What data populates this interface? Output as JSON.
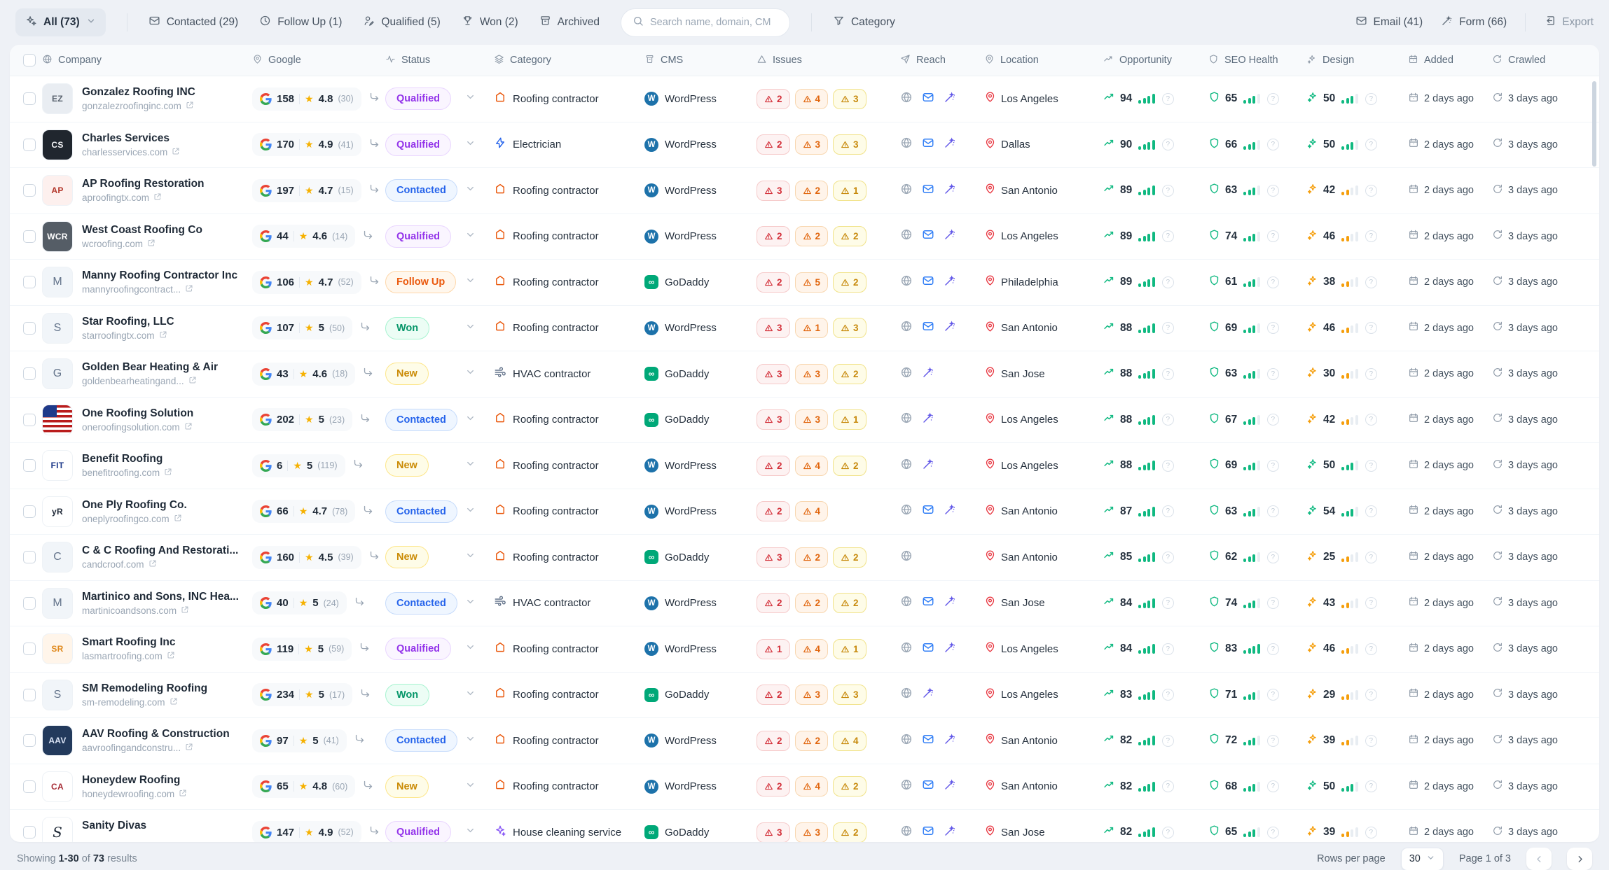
{
  "toolbar": {
    "all_label": "All (73)",
    "tabs": [
      {
        "icon": "mail-icon",
        "label": "Contacted (29)"
      },
      {
        "icon": "clock-icon",
        "label": "Follow Up (1)"
      },
      {
        "icon": "user-icon",
        "label": "Qualified (5)"
      },
      {
        "icon": "trophy-icon",
        "label": "Won (2)"
      },
      {
        "icon": "archive-icon",
        "label": "Archived"
      }
    ],
    "search_placeholder": "Search name, domain, CM",
    "category_label": "Category",
    "email_label": "Email (41)",
    "form_label": "Form (66)",
    "export_label": "Export"
  },
  "table": {
    "columns": [
      {
        "label": "Company"
      },
      {
        "label": "Google"
      },
      {
        "label": "Status"
      },
      {
        "label": "Category"
      },
      {
        "label": "CMS"
      },
      {
        "label": "Issues"
      },
      {
        "label": "Reach"
      },
      {
        "label": "Location"
      },
      {
        "label": "Opportunity"
      },
      {
        "label": "SEO Health"
      },
      {
        "label": "Design"
      },
      {
        "label": "Added"
      },
      {
        "label": "Crawled"
      }
    ],
    "rows": [
      {
        "name": "Gonzalez Roofing INC",
        "domain": "gonzalezroofinginc.com",
        "avatar": {
          "kind": "logo",
          "text": "EZ",
          "bg": "#e9edf2",
          "fg": "#5b6470"
        },
        "google": {
          "count": "158",
          "rating": "4.8",
          "reviews": "(30)"
        },
        "status": "Qualified",
        "category": {
          "label": "Roofing contractor",
          "type": "roofing"
        },
        "cms": "WordPress",
        "issues": [
          2,
          4,
          3
        ],
        "reach": {
          "globe": true,
          "mail": true,
          "wand": true
        },
        "location": "Los Angeles",
        "opportunity": 94,
        "seo": 65,
        "design": 50,
        "added": "2 days ago",
        "crawled": "3 days ago"
      },
      {
        "name": "Charles Services",
        "domain": "charlesservices.com",
        "avatar": {
          "kind": "logo",
          "text": "CS",
          "bg": "#20262e",
          "fg": "#f3f4f6"
        },
        "google": {
          "count": "170",
          "rating": "4.9",
          "reviews": "(41)"
        },
        "status": "Qualified",
        "category": {
          "label": "Electrician",
          "type": "electrician"
        },
        "cms": "WordPress",
        "issues": [
          2,
          3,
          3
        ],
        "reach": {
          "globe": true,
          "mail": true,
          "wand": true
        },
        "location": "Dallas",
        "opportunity": 90,
        "seo": 66,
        "design": 50,
        "added": "2 days ago",
        "crawled": "3 days ago"
      },
      {
        "name": "AP Roofing Restoration",
        "domain": "aproofingtx.com",
        "avatar": {
          "kind": "logo",
          "text": "AP",
          "bg": "#fdf0ee",
          "fg": "#b3362a"
        },
        "google": {
          "count": "197",
          "rating": "4.7",
          "reviews": "(15)"
        },
        "status": "Contacted",
        "category": {
          "label": "Roofing contractor",
          "type": "roofing"
        },
        "cms": "WordPress",
        "issues": [
          3,
          2,
          1
        ],
        "reach": {
          "globe": true,
          "mail": true,
          "wand": true
        },
        "location": "San Antonio",
        "opportunity": 89,
        "seo": 63,
        "design": 42,
        "added": "2 days ago",
        "crawled": "3 days ago"
      },
      {
        "name": "West Coast Roofing Co",
        "domain": "wcroofing.com",
        "avatar": {
          "kind": "logo",
          "text": "WCR",
          "bg": "#555d66",
          "fg": "#ffffff"
        },
        "google": {
          "count": "44",
          "rating": "4.6",
          "reviews": "(14)"
        },
        "status": "Qualified",
        "category": {
          "label": "Roofing contractor",
          "type": "roofing"
        },
        "cms": "WordPress",
        "issues": [
          2,
          2,
          2
        ],
        "reach": {
          "globe": true,
          "mail": true,
          "wand": true
        },
        "location": "Los Angeles",
        "opportunity": 89,
        "seo": 74,
        "design": 46,
        "added": "2 days ago",
        "crawled": "3 days ago"
      },
      {
        "name": "Manny Roofing Contractor Inc",
        "domain": "mannyroofingcontract...",
        "avatar": {
          "kind": "letter",
          "text": "M"
        },
        "google": {
          "count": "106",
          "rating": "4.7",
          "reviews": "(52)"
        },
        "status": "Follow Up",
        "category": {
          "label": "Roofing contractor",
          "type": "roofing"
        },
        "cms": "GoDaddy",
        "issues": [
          2,
          5,
          2
        ],
        "reach": {
          "globe": true,
          "mail": true,
          "wand": true
        },
        "location": "Philadelphia",
        "opportunity": 89,
        "seo": 61,
        "design": 38,
        "added": "2 days ago",
        "crawled": "3 days ago"
      },
      {
        "name": "Star Roofing, LLC",
        "domain": "starroofingtx.com",
        "avatar": {
          "kind": "letter",
          "text": "S"
        },
        "google": {
          "count": "107",
          "rating": "5",
          "reviews": "(50)"
        },
        "status": "Won",
        "category": {
          "label": "Roofing contractor",
          "type": "roofing"
        },
        "cms": "WordPress",
        "issues": [
          3,
          1,
          3
        ],
        "reach": {
          "globe": true,
          "mail": true,
          "wand": true
        },
        "location": "San Antonio",
        "opportunity": 88,
        "seo": 69,
        "design": 46,
        "added": "2 days ago",
        "crawled": "3 days ago"
      },
      {
        "name": "Golden Bear Heating & Air",
        "domain": "goldenbearheatingand...",
        "avatar": {
          "kind": "letter",
          "text": "G"
        },
        "google": {
          "count": "43",
          "rating": "4.6",
          "reviews": "(18)"
        },
        "status": "New",
        "category": {
          "label": "HVAC contractor",
          "type": "hvac"
        },
        "cms": "GoDaddy",
        "issues": [
          3,
          3,
          2
        ],
        "reach": {
          "globe": true,
          "mail": false,
          "wand": true
        },
        "location": "San Jose",
        "opportunity": 88,
        "seo": 63,
        "design": 30,
        "added": "2 days ago",
        "crawled": "3 days ago"
      },
      {
        "name": "One Roofing Solution",
        "domain": "oneroofingsolution.com",
        "avatar": {
          "kind": "flag",
          "text": ""
        },
        "google": {
          "count": "202",
          "rating": "5",
          "reviews": "(23)"
        },
        "status": "Contacted",
        "category": {
          "label": "Roofing contractor",
          "type": "roofing"
        },
        "cms": "GoDaddy",
        "issues": [
          3,
          3,
          1
        ],
        "reach": {
          "globe": true,
          "mail": false,
          "wand": true
        },
        "location": "Los Angeles",
        "opportunity": 88,
        "seo": 67,
        "design": 42,
        "added": "2 days ago",
        "crawled": "3 days ago"
      },
      {
        "name": "Benefit Roofing",
        "domain": "benefitroofing.com",
        "avatar": {
          "kind": "logo",
          "text": "FIT",
          "bg": "#ffffff",
          "fg": "#1e3a8a"
        },
        "google": {
          "count": "6",
          "rating": "5",
          "reviews": "(119)"
        },
        "status": "New",
        "category": {
          "label": "Roofing contractor",
          "type": "roofing"
        },
        "cms": "WordPress",
        "issues": [
          2,
          4,
          2
        ],
        "reach": {
          "globe": true,
          "mail": false,
          "wand": true
        },
        "location": "Los Angeles",
        "opportunity": 88,
        "seo": 69,
        "design": 50,
        "added": "2 days ago",
        "crawled": "3 days ago"
      },
      {
        "name": "One Ply Roofing Co.",
        "domain": "oneplyroofingco.com",
        "avatar": {
          "kind": "logo",
          "text": "yR",
          "bg": "#ffffff",
          "fg": "#1f2937"
        },
        "google": {
          "count": "66",
          "rating": "4.7",
          "reviews": "(78)"
        },
        "status": "Contacted",
        "category": {
          "label": "Roofing contractor",
          "type": "roofing"
        },
        "cms": "WordPress",
        "issues": [
          2,
          4,
          null
        ],
        "reach": {
          "globe": true,
          "mail": true,
          "wand": true
        },
        "location": "San Antonio",
        "opportunity": 87,
        "seo": 63,
        "design": 54,
        "added": "2 days ago",
        "crawled": "3 days ago"
      },
      {
        "name": "C & C Roofing And Restorati...",
        "domain": "candcroof.com",
        "avatar": {
          "kind": "letter",
          "text": "C"
        },
        "google": {
          "count": "160",
          "rating": "4.5",
          "reviews": "(39)"
        },
        "status": "New",
        "category": {
          "label": "Roofing contractor",
          "type": "roofing"
        },
        "cms": "GoDaddy",
        "issues": [
          3,
          2,
          2
        ],
        "reach": {
          "globe": true,
          "mail": false,
          "wand": false
        },
        "location": "San Antonio",
        "opportunity": 85,
        "seo": 62,
        "design": 25,
        "added": "2 days ago",
        "crawled": "3 days ago"
      },
      {
        "name": "Martinico and Sons, INC Hea...",
        "domain": "martinicoandsons.com",
        "avatar": {
          "kind": "letter",
          "text": "M"
        },
        "google": {
          "count": "40",
          "rating": "5",
          "reviews": "(24)"
        },
        "status": "Contacted",
        "category": {
          "label": "HVAC contractor",
          "type": "hvac"
        },
        "cms": "WordPress",
        "issues": [
          2,
          2,
          2
        ],
        "reach": {
          "globe": true,
          "mail": true,
          "wand": true
        },
        "location": "San Jose",
        "opportunity": 84,
        "seo": 74,
        "design": 43,
        "added": "2 days ago",
        "crawled": "3 days ago"
      },
      {
        "name": "Smart Roofing Inc",
        "domain": "lasmartroofing.com",
        "avatar": {
          "kind": "logo",
          "text": "SR",
          "bg": "#fff5ea",
          "fg": "#e08a1e"
        },
        "google": {
          "count": "119",
          "rating": "5",
          "reviews": "(59)"
        },
        "status": "Qualified",
        "category": {
          "label": "Roofing contractor",
          "type": "roofing"
        },
        "cms": "WordPress",
        "issues": [
          1,
          4,
          1
        ],
        "reach": {
          "globe": true,
          "mail": true,
          "wand": true
        },
        "location": "Los Angeles",
        "opportunity": 84,
        "seo": 83,
        "design": 46,
        "added": "2 days ago",
        "crawled": "3 days ago"
      },
      {
        "name": "SM Remodeling Roofing",
        "domain": "sm-remodeling.com",
        "avatar": {
          "kind": "letter",
          "text": "S"
        },
        "google": {
          "count": "234",
          "rating": "5",
          "reviews": "(17)"
        },
        "status": "Won",
        "category": {
          "label": "Roofing contractor",
          "type": "roofing"
        },
        "cms": "GoDaddy",
        "issues": [
          2,
          3,
          3
        ],
        "reach": {
          "globe": true,
          "mail": false,
          "wand": true
        },
        "location": "Los Angeles",
        "opportunity": 83,
        "seo": 71,
        "design": 29,
        "added": "2 days ago",
        "crawled": "3 days ago"
      },
      {
        "name": "AAV Roofing & Construction",
        "domain": "aavroofingandconstru...",
        "avatar": {
          "kind": "logo",
          "text": "AAV",
          "bg": "#233a5c",
          "fg": "#dbe4f5"
        },
        "google": {
          "count": "97",
          "rating": "5",
          "reviews": "(41)"
        },
        "status": "Contacted",
        "category": {
          "label": "Roofing contractor",
          "type": "roofing"
        },
        "cms": "WordPress",
        "issues": [
          2,
          2,
          4
        ],
        "reach": {
          "globe": true,
          "mail": true,
          "wand": true
        },
        "location": "San Antonio",
        "opportunity": 82,
        "seo": 72,
        "design": 39,
        "added": "2 days ago",
        "crawled": "3 days ago"
      },
      {
        "name": "Honeydew Roofing",
        "domain": "honeydewroofing.com",
        "avatar": {
          "kind": "logo",
          "text": "CA",
          "bg": "#ffffff",
          "fg": "#a72c35"
        },
        "google": {
          "count": "65",
          "rating": "4.8",
          "reviews": "(60)"
        },
        "status": "New",
        "category": {
          "label": "Roofing contractor",
          "type": "roofing"
        },
        "cms": "WordPress",
        "issues": [
          2,
          4,
          2
        ],
        "reach": {
          "globe": true,
          "mail": true,
          "wand": true
        },
        "location": "San Antonio",
        "opportunity": 82,
        "seo": 68,
        "design": 50,
        "added": "2 days ago",
        "crawled": "3 days ago"
      },
      {
        "name": "Sanity Divas",
        "domain": "",
        "avatar": {
          "kind": "script",
          "text": "S"
        },
        "google": {
          "count": "147",
          "rating": "4.9",
          "reviews": "(52)"
        },
        "status": "Qualified",
        "category": {
          "label": "House cleaning service",
          "type": "cleaning"
        },
        "cms": "GoDaddy",
        "issues": [
          3,
          3,
          2
        ],
        "reach": {
          "globe": true,
          "mail": true,
          "wand": true
        },
        "location": "San Jose",
        "opportunity": 82,
        "seo": 65,
        "design": 39,
        "added": "2 days ago",
        "crawled": "3 days ago"
      }
    ]
  },
  "footer": {
    "showing_label": "Showing",
    "range": "1-30",
    "of_label": "of",
    "total": "73",
    "results_label": "results",
    "rows_per_page_label": "Rows per page",
    "rows_per_page_value": "30",
    "page_label": "Page 1 of 3"
  },
  "colors": {
    "green": "#10b981",
    "amber": "#f59e0b",
    "red": "#dc2626",
    "blue": "#2563eb",
    "purple": "#9333ea",
    "wordpress": "#1d72aa",
    "godaddy": "#00a878"
  }
}
